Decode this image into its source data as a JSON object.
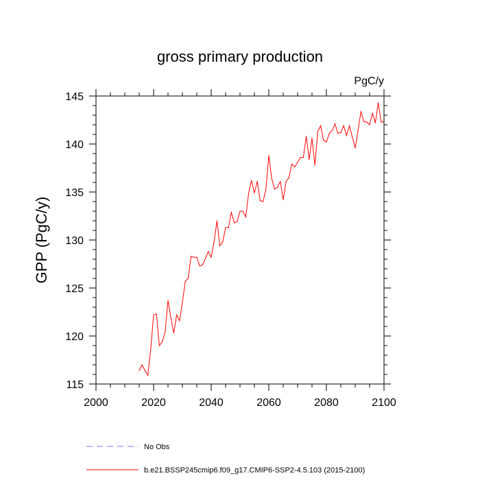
{
  "chart_data": {
    "type": "line",
    "title": "gross primary production",
    "units_label": "PgC/y",
    "ylabel": "GPP  (PgC/y)",
    "xlabel": "",
    "xlim": [
      2000,
      2100
    ],
    "ylim": [
      115,
      145
    ],
    "x_ticks": [
      2000,
      2020,
      2040,
      2060,
      2080,
      2100
    ],
    "y_ticks": [
      115,
      120,
      125,
      130,
      135,
      140,
      145
    ],
    "x_ticks_labels": [
      "2000",
      "2020",
      "2040",
      "2060",
      "2080",
      "2100"
    ],
    "y_ticks_labels": [
      "115",
      "120",
      "125",
      "130",
      "135",
      "140",
      "145"
    ],
    "series": [
      {
        "name": "b.e21.BSSP245cmip6.f09_g17.CMIP6-SSP2-4.5.103 (2015-2100)",
        "color": "#ff0000",
        "dash": "solid",
        "x": [
          2015,
          2016,
          2017,
          2018,
          2019,
          2020,
          2021,
          2022,
          2023,
          2024,
          2025,
          2026,
          2027,
          2028,
          2029,
          2030,
          2031,
          2032,
          2033,
          2034,
          2035,
          2036,
          2037,
          2038,
          2039,
          2040,
          2041,
          2042,
          2043,
          2044,
          2045,
          2046,
          2047,
          2048,
          2049,
          2050,
          2051,
          2052,
          2053,
          2054,
          2055,
          2056,
          2057,
          2058,
          2059,
          2060,
          2061,
          2062,
          2063,
          2064,
          2065,
          2066,
          2067,
          2068,
          2069,
          2070,
          2071,
          2072,
          2073,
          2074,
          2075,
          2076,
          2077,
          2078,
          2079,
          2080,
          2081,
          2082,
          2083,
          2084,
          2085,
          2086,
          2087,
          2088,
          2089,
          2090,
          2091,
          2092,
          2093,
          2094,
          2095,
          2096,
          2097,
          2098,
          2099,
          2100
        ],
        "values": [
          116.4,
          117.0,
          116.4,
          115.9,
          118.6,
          122.2,
          122.3,
          119.0,
          119.4,
          120.4,
          123.7,
          121.9,
          120.3,
          122.2,
          121.6,
          123.5,
          125.7,
          126.0,
          128.3,
          128.2,
          128.2,
          127.3,
          127.4,
          128.1,
          128.8,
          128.2,
          129.8,
          132.0,
          129.4,
          129.8,
          131.3,
          131.3,
          132.9,
          131.8,
          131.9,
          133.0,
          133.0,
          132.4,
          134.9,
          136.2,
          134.9,
          136.1,
          134.1,
          134.0,
          135.3,
          138.8,
          136.4,
          135.3,
          135.5,
          136.1,
          134.2,
          136.1,
          136.5,
          137.9,
          137.6,
          138.1,
          138.6,
          138.6,
          140.8,
          138.4,
          140.6,
          137.8,
          141.3,
          141.9,
          140.4,
          140.2,
          141.1,
          141.4,
          142.1,
          141.1,
          141.2,
          141.9,
          140.9,
          141.9,
          140.7,
          139.6,
          141.4,
          143.4,
          142.3,
          142.3,
          142.0,
          143.2,
          142.2,
          144.3,
          142.3,
          142.3
        ]
      }
    ],
    "legend": [
      {
        "label": "No Obs",
        "color": "#7777ff",
        "dash": "dashed"
      },
      {
        "label": "b.e21.BSSP245cmip6.f09_g17.CMIP6-SSP2-4.5.103 (2015-2100)",
        "color": "#ff0000",
        "dash": "solid"
      }
    ]
  }
}
